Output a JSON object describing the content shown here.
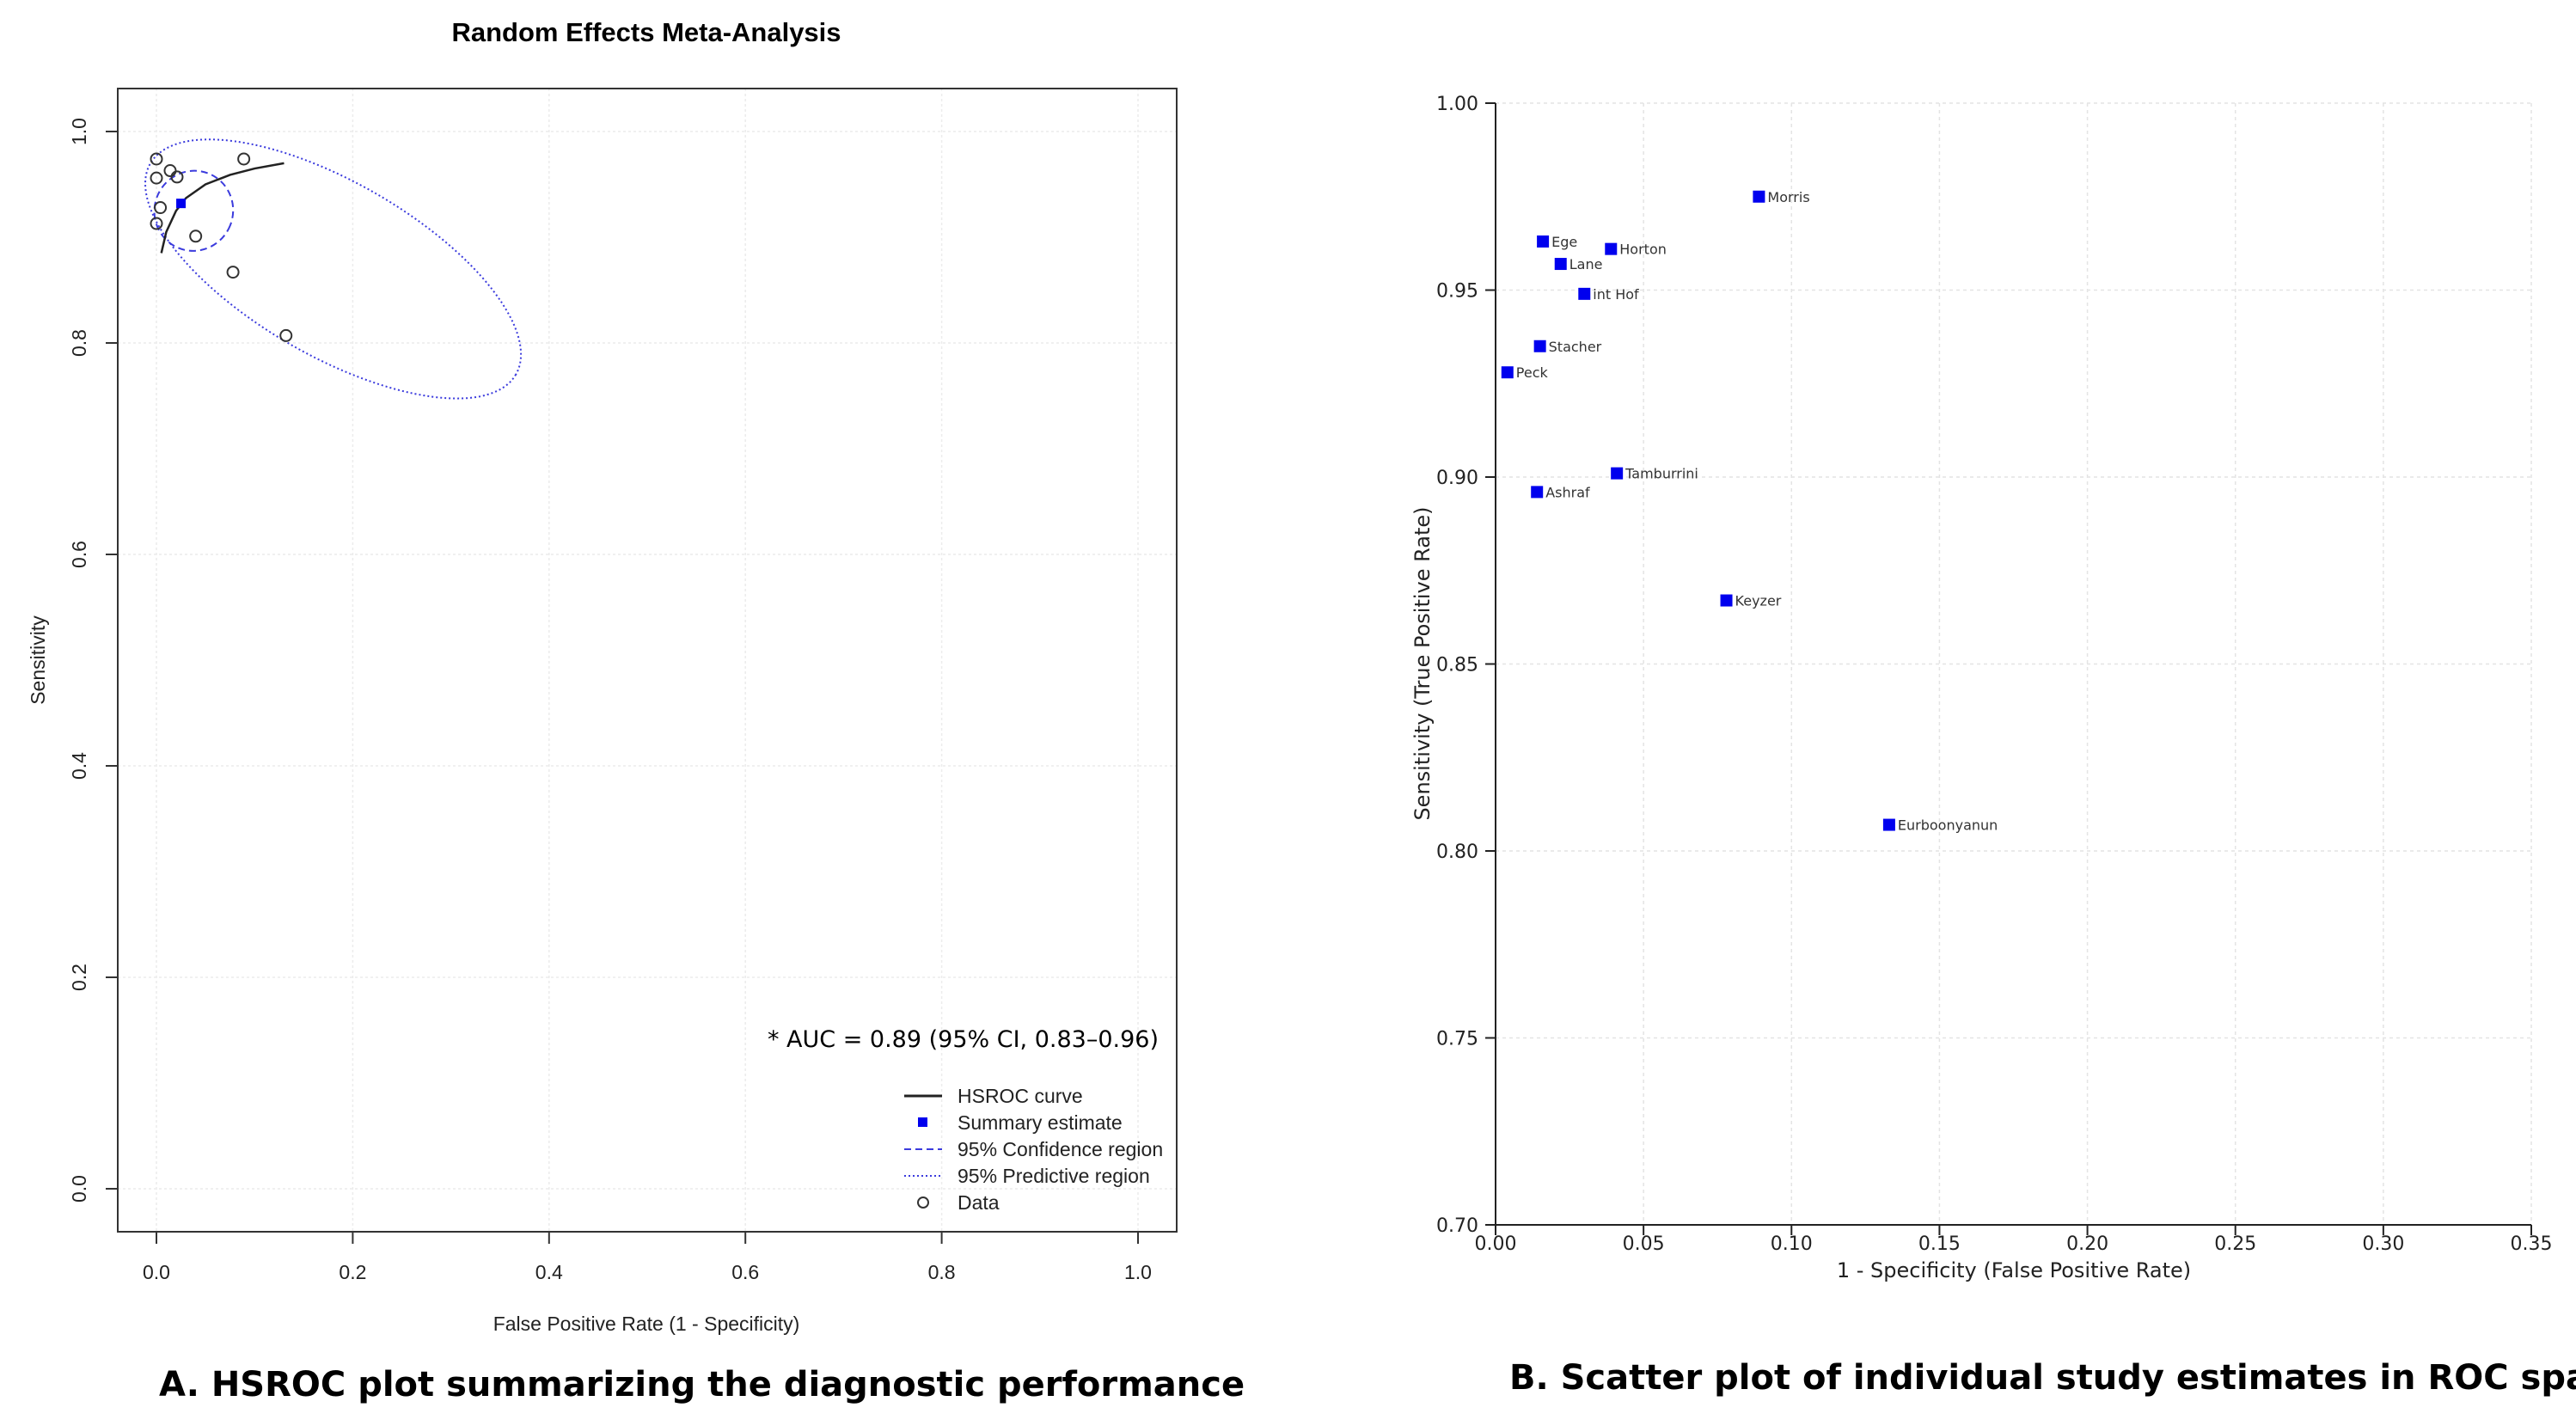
{
  "panel_a": {
    "caption": "A. HSROC plot summarizing the diagnostic performance",
    "auc_text": "* AUC = 0.89 (95% CI, 0.83–0.96)",
    "legend": {
      "hsroc": "HSROC curve",
      "summary": "Summary estimate",
      "confidence": "95% Confidence region",
      "predictive": "95% Predictive region",
      "data": "Data"
    }
  },
  "panel_b": {
    "caption": "B. Scatter plot of individual study estimates in ROC space"
  },
  "colors": {
    "marker_blue": "#0000ee",
    "region_blue": "#3b3bdd",
    "axis": "#333333",
    "grid": "#e4e4e4"
  },
  "chart_data": [
    {
      "type": "scatter",
      "title": "Random Effects Meta-Analysis",
      "xlabel": "False Positive Rate (1 - Specificity)",
      "ylabel": "Sensitivity",
      "xlim": [
        0,
        1
      ],
      "ylim": [
        0,
        1
      ],
      "xticks": [
        "0.0",
        "0.2",
        "0.4",
        "0.6",
        "0.8",
        "1.0"
      ],
      "yticks": [
        "0.0",
        "0.2",
        "0.4",
        "0.6",
        "0.8",
        "1.0"
      ],
      "grid": true,
      "legend_position": "bottom-right",
      "data_points": [
        {
          "x": 0.0,
          "y": 0.974
        },
        {
          "x": 0.0,
          "y": 0.956
        },
        {
          "x": 0.0,
          "y": 0.913
        },
        {
          "x": 0.004,
          "y": 0.928
        },
        {
          "x": 0.014,
          "y": 0.963
        },
        {
          "x": 0.021,
          "y": 0.957
        },
        {
          "x": 0.04,
          "y": 0.901
        },
        {
          "x": 0.078,
          "y": 0.867
        },
        {
          "x": 0.089,
          "y": 0.974
        },
        {
          "x": 0.132,
          "y": 0.807
        }
      ],
      "summary_estimate": {
        "x": 0.025,
        "y": 0.932
      },
      "hsroc_curve": [
        {
          "x": 0.005,
          "y": 0.885
        },
        {
          "x": 0.01,
          "y": 0.905
        },
        {
          "x": 0.02,
          "y": 0.925
        },
        {
          "x": 0.03,
          "y": 0.937
        },
        {
          "x": 0.05,
          "y": 0.95
        },
        {
          "x": 0.075,
          "y": 0.959
        },
        {
          "x": 0.1,
          "y": 0.965
        },
        {
          "x": 0.13,
          "y": 0.97
        }
      ],
      "confidence_region": {
        "center": [
          0.038,
          0.925
        ],
        "semi_axes": [
          0.04,
          0.038
        ],
        "angle_deg": -22
      },
      "predictive_region": {
        "center": [
          0.18,
          0.87
        ],
        "semi_axes": [
          0.215,
          0.082
        ],
        "angle_deg": -30
      }
    },
    {
      "type": "scatter",
      "title": "",
      "xlabel": "1 - Specificity (False Positive Rate)",
      "ylabel": "Sensitivity (True Positive Rate)",
      "xlim": [
        0,
        0.35
      ],
      "ylim": [
        0.7,
        1.0
      ],
      "xticks": [
        "0.00",
        "0.05",
        "0.10",
        "0.15",
        "0.20",
        "0.25",
        "0.30",
        "0.35"
      ],
      "yticks": [
        "0.70",
        "0.75",
        "0.80",
        "0.85",
        "0.90",
        "0.95",
        "1.00"
      ],
      "grid": true,
      "points": [
        {
          "label": "Morris",
          "x": 0.089,
          "y": 0.975
        },
        {
          "label": "Ege",
          "x": 0.016,
          "y": 0.963
        },
        {
          "label": "Horton",
          "x": 0.039,
          "y": 0.961
        },
        {
          "label": "Lane",
          "x": 0.022,
          "y": 0.957
        },
        {
          "label": "int Hof",
          "x": 0.03,
          "y": 0.949
        },
        {
          "label": "Stacher",
          "x": 0.015,
          "y": 0.935
        },
        {
          "label": "Peck",
          "x": 0.004,
          "y": 0.928
        },
        {
          "label": "Tamburrini",
          "x": 0.041,
          "y": 0.901
        },
        {
          "label": "Ashraf",
          "x": 0.014,
          "y": 0.896
        },
        {
          "label": "Keyzer",
          "x": 0.078,
          "y": 0.867
        },
        {
          "label": "Eurboonyanun",
          "x": 0.133,
          "y": 0.807
        }
      ]
    }
  ]
}
